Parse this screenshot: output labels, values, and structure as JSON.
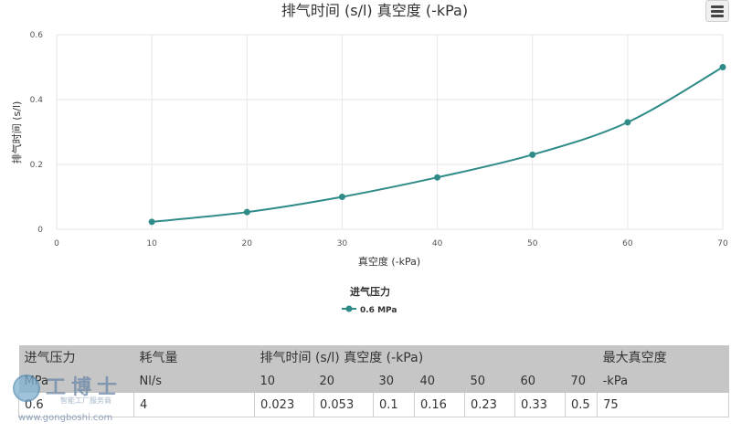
{
  "chart_data": {
    "type": "line",
    "title": "排气时间 (s/l) 真空度 (-kPa)",
    "xlabel": "真空度 (-kPa)",
    "ylabel": "排气时间 (s/l)",
    "xlim": [
      0,
      70
    ],
    "ylim": [
      0,
      0.6
    ],
    "x_ticks": [
      "0",
      "10",
      "20",
      "30",
      "40",
      "50",
      "60",
      "70"
    ],
    "y_ticks": [
      "0",
      "0.2",
      "0.4",
      "0.6"
    ],
    "grid": true,
    "legend_title": "进气压力",
    "legend_position": "bottom-center",
    "series": [
      {
        "name": "0.6 MPa",
        "color": "#2e8b87",
        "x": [
          10,
          20,
          30,
          40,
          50,
          60,
          70
        ],
        "values": [
          0.023,
          0.053,
          0.1,
          0.16,
          0.23,
          0.33,
          0.5
        ]
      }
    ]
  },
  "menu_icon": "hamburger-menu-icon",
  "table": {
    "header_row1": [
      "进气压力",
      "耗气量",
      "排气时间 (s/l) 真空度 (-kPa)",
      "最大真空度"
    ],
    "header_row2": [
      "MPa",
      "Nl/s",
      "10",
      "20",
      "30",
      "40",
      "50",
      "60",
      "70",
      "-kPa"
    ],
    "rows": [
      [
        "0.6",
        "4",
        "0.023",
        "0.053",
        "0.1",
        "0.16",
        "0.23",
        "0.33",
        "0.5",
        "75"
      ]
    ]
  },
  "watermark": {
    "logo": "工博士",
    "subtitle": "智能工厂服务商",
    "url": "www.gongboshi.com"
  }
}
